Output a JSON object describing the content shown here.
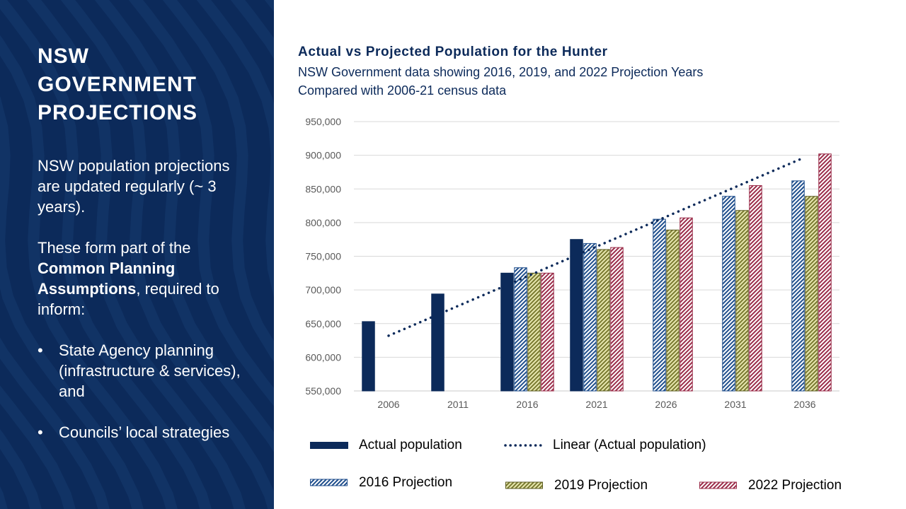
{
  "left_panel": {
    "title": "NSW GOVERNMENT PROJECTIONS",
    "para1": "NSW population projections are updated regularly (~ 3 years).",
    "para2_prefix": "These form part of the ",
    "para2_bold": "Common Planning Assumptions",
    "para2_suffix": ", required to inform:",
    "bullets": [
      "State Agency planning (infrastructure & services), and",
      "Councils’ local strategies"
    ],
    "bg_color": "#0c2a5a"
  },
  "chart_data": {
    "type": "bar",
    "title": "Actual vs Projected Population for the Hunter",
    "subtitle_line1": "NSW Government data showing 2016, 2019, and 2022 Projection Years",
    "subtitle_line2": "Compared with 2006-21 census data",
    "categories": [
      "2006",
      "2011",
      "2016",
      "2021",
      "2026",
      "2031",
      "2036"
    ],
    "ylim": [
      550000,
      950000
    ],
    "yticks": [
      "550,000",
      "600,000",
      "650,000",
      "700,000",
      "750,000",
      "800,000",
      "850,000",
      "900,000",
      "950,000"
    ],
    "ytick_values": [
      550000,
      600000,
      650000,
      700000,
      750000,
      800000,
      850000,
      900000,
      950000
    ],
    "series": [
      {
        "name": "Actual population",
        "color": "#0c2a5a",
        "pattern": "solid",
        "values": [
          653000,
          694000,
          725000,
          775000,
          null,
          null,
          null
        ]
      },
      {
        "name": "2016 Projection",
        "color": "#1f4e8c",
        "pattern": "diag-blue",
        "values": [
          null,
          null,
          733000,
          769000,
          805000,
          839000,
          862000
        ]
      },
      {
        "name": "2019 Projection",
        "color": "#8a8a3a",
        "pattern": "diag-olive",
        "values": [
          null,
          null,
          725000,
          760000,
          789000,
          818000,
          839000
        ]
      },
      {
        "name": "2022 Projection",
        "color": "#9b2d4a",
        "pattern": "diag-red",
        "values": [
          null,
          null,
          725000,
          763000,
          807000,
          855000,
          902000
        ]
      }
    ],
    "trendline": {
      "name": "Linear (Actual population)",
      "style": "dotted",
      "color": "#0c2a5a",
      "x_start": "2006",
      "y_start": 632000,
      "x_end": "2036",
      "y_end": 897000
    },
    "grid": true
  }
}
